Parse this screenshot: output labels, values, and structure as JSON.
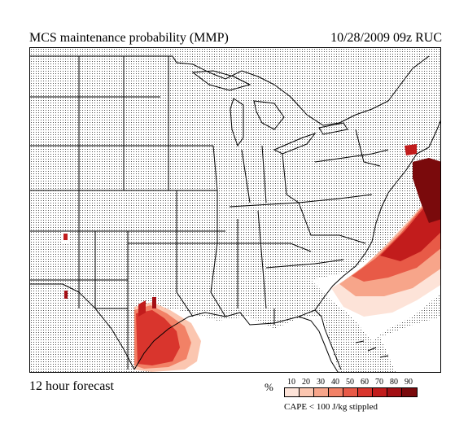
{
  "header": {
    "title": "MCS maintenance probability (MMP)",
    "datetime": "10/28/2009  09z  RUC"
  },
  "footer": {
    "forecast": "12 hour forecast"
  },
  "legend": {
    "unit": "%",
    "ticks": [
      "10",
      "20",
      "30",
      "40",
      "50",
      "60",
      "70",
      "80",
      "90"
    ],
    "colors": [
      "#fde3d8",
      "#fbc6b0",
      "#f7a58a",
      "#f28166",
      "#e85a47",
      "#d9352d",
      "#c21c1c",
      "#a30f14",
      "#7a0a0c"
    ],
    "note": "CAPE < 100 J/kg stippled"
  },
  "map": {
    "stipple_color": "#000000",
    "boundary_color": "#000000"
  }
}
